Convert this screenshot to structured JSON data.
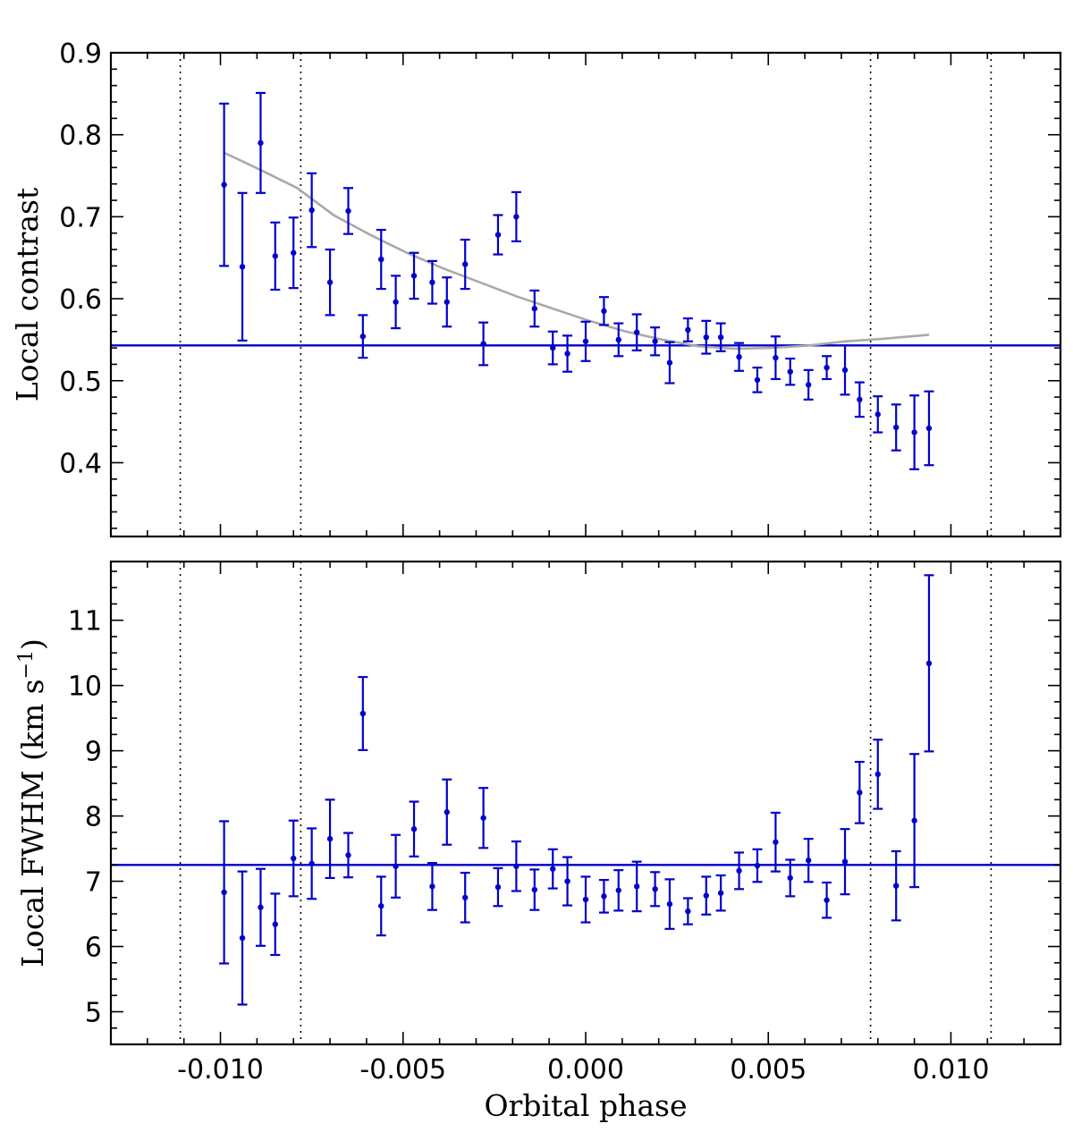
{
  "chart_data": {
    "type": "scatter",
    "shared_x": {
      "label": "Orbital phase",
      "xlim": [
        -0.013,
        0.013
      ],
      "ticks": [
        -0.01,
        -0.005,
        0.0,
        0.005,
        0.01
      ],
      "tick_labels": [
        "-0.010",
        "-0.005",
        "0.000",
        "0.005",
        "0.010"
      ],
      "minor_step": 0.001
    },
    "vertical_lines": [
      -0.0111,
      -0.0078,
      0.0078,
      0.0111
    ],
    "panels": [
      {
        "id": "contrast",
        "ylabel": "Local contrast",
        "ylim": [
          0.31,
          0.9
        ],
        "ticks": [
          0.4,
          0.5,
          0.6,
          0.7,
          0.8,
          0.9
        ],
        "tick_labels": [
          "0.4",
          "0.5",
          "0.6",
          "0.7",
          "0.8",
          "0.9"
        ],
        "minor_step": 0.02,
        "horizontal_line": 0.543,
        "model_curve": {
          "x": [
            -0.0099,
            -0.0089,
            -0.0079,
            -0.0069,
            -0.0059,
            -0.0049,
            -0.0039,
            -0.0029,
            -0.0019,
            -0.0009,
            0.0001,
            0.0011,
            0.0021,
            0.0031,
            0.0041,
            0.0051,
            0.0061,
            0.0071,
            0.0081,
            0.0094
          ],
          "y": [
            0.778,
            0.757,
            0.735,
            0.702,
            0.678,
            0.656,
            0.637,
            0.62,
            0.603,
            0.588,
            0.573,
            0.56,
            0.55,
            0.542,
            0.539,
            0.54,
            0.543,
            0.548,
            0.551,
            0.556
          ]
        },
        "points": [
          {
            "x": -0.0099,
            "y": 0.739,
            "err": 0.099
          },
          {
            "x": -0.0094,
            "y": 0.639,
            "err": 0.09
          },
          {
            "x": -0.0089,
            "y": 0.79,
            "err": 0.061
          },
          {
            "x": -0.0085,
            "y": 0.652,
            "err": 0.041
          },
          {
            "x": -0.008,
            "y": 0.656,
            "err": 0.043
          },
          {
            "x": -0.0075,
            "y": 0.708,
            "err": 0.045
          },
          {
            "x": -0.007,
            "y": 0.62,
            "err": 0.04
          },
          {
            "x": -0.0065,
            "y": 0.707,
            "err": 0.028
          },
          {
            "x": -0.0061,
            "y": 0.554,
            "err": 0.026
          },
          {
            "x": -0.0056,
            "y": 0.648,
            "err": 0.036
          },
          {
            "x": -0.0052,
            "y": 0.596,
            "err": 0.032
          },
          {
            "x": -0.0047,
            "y": 0.628,
            "err": 0.028
          },
          {
            "x": -0.0042,
            "y": 0.62,
            "err": 0.026
          },
          {
            "x": -0.0038,
            "y": 0.596,
            "err": 0.03
          },
          {
            "x": -0.0033,
            "y": 0.642,
            "err": 0.03
          },
          {
            "x": -0.0028,
            "y": 0.545,
            "err": 0.026
          },
          {
            "x": -0.0024,
            "y": 0.678,
            "err": 0.024
          },
          {
            "x": -0.0019,
            "y": 0.7,
            "err": 0.03
          },
          {
            "x": -0.0014,
            "y": 0.588,
            "err": 0.022
          },
          {
            "x": -0.0009,
            "y": 0.54,
            "err": 0.02
          },
          {
            "x": -0.0005,
            "y": 0.533,
            "err": 0.022
          },
          {
            "x": 0.0,
            "y": 0.548,
            "err": 0.024
          },
          {
            "x": 0.0005,
            "y": 0.585,
            "err": 0.017
          },
          {
            "x": 0.0009,
            "y": 0.55,
            "err": 0.02
          },
          {
            "x": 0.0014,
            "y": 0.559,
            "err": 0.022
          },
          {
            "x": 0.0019,
            "y": 0.548,
            "err": 0.017
          },
          {
            "x": 0.0023,
            "y": 0.522,
            "err": 0.025
          },
          {
            "x": 0.0028,
            "y": 0.562,
            "err": 0.014
          },
          {
            "x": 0.0033,
            "y": 0.553,
            "err": 0.02
          },
          {
            "x": 0.0037,
            "y": 0.553,
            "err": 0.017
          },
          {
            "x": 0.0042,
            "y": 0.529,
            "err": 0.017
          },
          {
            "x": 0.0047,
            "y": 0.501,
            "err": 0.015
          },
          {
            "x": 0.0052,
            "y": 0.528,
            "err": 0.026
          },
          {
            "x": 0.0056,
            "y": 0.511,
            "err": 0.016
          },
          {
            "x": 0.0061,
            "y": 0.495,
            "err": 0.018
          },
          {
            "x": 0.0066,
            "y": 0.516,
            "err": 0.014
          },
          {
            "x": 0.0071,
            "y": 0.513,
            "err": 0.03
          },
          {
            "x": 0.0075,
            "y": 0.477,
            "err": 0.021
          },
          {
            "x": 0.008,
            "y": 0.459,
            "err": 0.022
          },
          {
            "x": 0.0085,
            "y": 0.443,
            "err": 0.028
          },
          {
            "x": 0.009,
            "y": 0.437,
            "err": 0.045
          },
          {
            "x": 0.0094,
            "y": 0.442,
            "err": 0.045
          }
        ]
      },
      {
        "id": "fwhm",
        "ylabel": "Local FWHM (km s",
        "ylabel_sup": "−1",
        "ylabel_end": ")",
        "ylim": [
          4.5,
          11.9
        ],
        "ticks": [
          5,
          6,
          7,
          8,
          9,
          10,
          11
        ],
        "tick_labels": [
          "5",
          "6",
          "7",
          "8",
          "9",
          "10",
          "11"
        ],
        "minor_step": 0.25,
        "horizontal_line": 7.25,
        "points": [
          {
            "x": -0.0099,
            "y": 6.83,
            "err": 1.09
          },
          {
            "x": -0.0094,
            "y": 6.13,
            "err": 1.02
          },
          {
            "x": -0.0089,
            "y": 6.6,
            "err": 0.59
          },
          {
            "x": -0.0085,
            "y": 6.34,
            "err": 0.47
          },
          {
            "x": -0.008,
            "y": 7.35,
            "err": 0.58
          },
          {
            "x": -0.0075,
            "y": 7.27,
            "err": 0.54
          },
          {
            "x": -0.007,
            "y": 7.65,
            "err": 0.6
          },
          {
            "x": -0.0065,
            "y": 7.4,
            "err": 0.34
          },
          {
            "x": -0.0061,
            "y": 9.57,
            "err": 0.56
          },
          {
            "x": -0.0056,
            "y": 6.62,
            "err": 0.45
          },
          {
            "x": -0.0052,
            "y": 7.23,
            "err": 0.48
          },
          {
            "x": -0.0047,
            "y": 7.8,
            "err": 0.42
          },
          {
            "x": -0.0042,
            "y": 6.92,
            "err": 0.36
          },
          {
            "x": -0.0038,
            "y": 8.06,
            "err": 0.5
          },
          {
            "x": -0.0033,
            "y": 6.75,
            "err": 0.38
          },
          {
            "x": -0.0028,
            "y": 7.97,
            "err": 0.46
          },
          {
            "x": -0.0024,
            "y": 6.91,
            "err": 0.29
          },
          {
            "x": -0.0019,
            "y": 7.23,
            "err": 0.38
          },
          {
            "x": -0.0014,
            "y": 6.87,
            "err": 0.31
          },
          {
            "x": -0.0009,
            "y": 7.19,
            "err": 0.3
          },
          {
            "x": -0.0005,
            "y": 7.0,
            "err": 0.37
          },
          {
            "x": 0.0,
            "y": 6.72,
            "err": 0.35
          },
          {
            "x": 0.0005,
            "y": 6.77,
            "err": 0.25
          },
          {
            "x": 0.0009,
            "y": 6.86,
            "err": 0.31
          },
          {
            "x": 0.0014,
            "y": 6.92,
            "err": 0.38
          },
          {
            "x": 0.0019,
            "y": 6.88,
            "err": 0.26
          },
          {
            "x": 0.0023,
            "y": 6.65,
            "err": 0.38
          },
          {
            "x": 0.0028,
            "y": 6.54,
            "err": 0.2
          },
          {
            "x": 0.0033,
            "y": 6.78,
            "err": 0.29
          },
          {
            "x": 0.0037,
            "y": 6.82,
            "err": 0.27
          },
          {
            "x": 0.0042,
            "y": 7.16,
            "err": 0.28
          },
          {
            "x": 0.0047,
            "y": 7.24,
            "err": 0.25
          },
          {
            "x": 0.0052,
            "y": 7.6,
            "err": 0.45
          },
          {
            "x": 0.0056,
            "y": 7.05,
            "err": 0.28
          },
          {
            "x": 0.0061,
            "y": 7.32,
            "err": 0.33
          },
          {
            "x": 0.0066,
            "y": 6.71,
            "err": 0.27
          },
          {
            "x": 0.0071,
            "y": 7.3,
            "err": 0.5
          },
          {
            "x": 0.0075,
            "y": 8.36,
            "err": 0.47
          },
          {
            "x": 0.008,
            "y": 8.64,
            "err": 0.53
          },
          {
            "x": 0.0085,
            "y": 6.93,
            "err": 0.53
          },
          {
            "x": 0.009,
            "y": 7.93,
            "err": 1.02
          },
          {
            "x": 0.0094,
            "y": 10.34,
            "err": 1.35
          }
        ]
      }
    ],
    "colors": {
      "points": "#0000cc",
      "model": "#a9a9a9",
      "reference_line": "#0000cc",
      "contact_lines": "#000000"
    }
  }
}
